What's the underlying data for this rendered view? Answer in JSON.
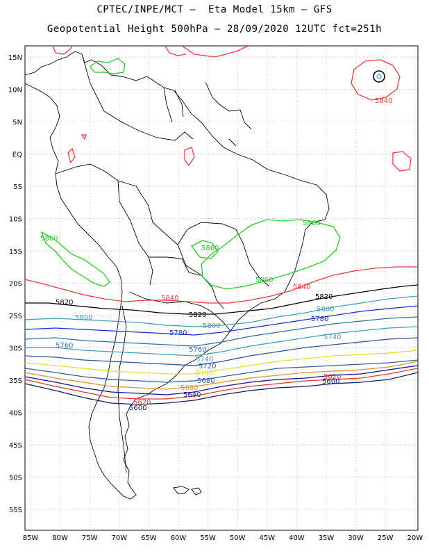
{
  "header": {
    "line1": "CPTEC/INPE/MCT –  Eta Model 15km – GFS",
    "line2": "Geopotential Height 500hPa – 28/09/2020 12UTC fct=251h"
  },
  "axes": {
    "lon_ticks": [
      "85W",
      "80W",
      "75W",
      "70W",
      "65W",
      "60W",
      "55W",
      "50W",
      "45W",
      "40W",
      "35W",
      "30W",
      "25W",
      "20W"
    ],
    "lat_ticks": [
      "15N",
      "10N",
      "5N",
      "EQ",
      "5S",
      "10S",
      "15S",
      "20S",
      "25S",
      "30S",
      "35S",
      "40S",
      "45S",
      "50S",
      "55S"
    ],
    "grid": "dotted"
  },
  "colors": {
    "c5500": "#0a1f6e",
    "c5520": "#e03a2a",
    "c5540": "#1010a0",
    "c5560": "#e09030",
    "c5580": "#e0e020",
    "c5600": "#2288cc",
    "c5620": "#2b6ea8",
    "c5640": "#1030c0",
    "c5660": "#30a0c0",
    "c5680": "#3060a0",
    "c5700": "#2040b0",
    "c5720": "#3050a0",
    "c5740": "#3a9ec0",
    "c5760": "#2b6ea8",
    "c5780": "#1030d0",
    "c5800": "#3a9ec0",
    "c5820": "#000000",
    "c5840": "#e83b3b",
    "c5860": "#22cc22",
    "coast": "#000000"
  },
  "contour_labels": [
    {
      "id": "l5860a",
      "text": "5860",
      "color": "#22cc22"
    },
    {
      "id": "l5860b",
      "text": "5860",
      "color": "#22cc22"
    },
    {
      "id": "l5860c",
      "text": "5860",
      "color": "#22cc22"
    },
    {
      "id": "l5860d",
      "text": "5860",
      "color": "#22cc22"
    },
    {
      "id": "l5840a",
      "text": "5840",
      "color": "#e83b3b"
    },
    {
      "id": "l5840b",
      "text": "5840",
      "color": "#e83b3b"
    },
    {
      "id": "l5840c",
      "text": "5840",
      "color": "#e83b3b"
    },
    {
      "id": "l5820a",
      "text": "5820",
      "color": "#000000"
    },
    {
      "id": "l5820b",
      "text": "5820",
      "color": "#000000"
    },
    {
      "id": "l5820c",
      "text": "5820",
      "color": "#000000"
    },
    {
      "id": "l5800a",
      "text": "5800",
      "color": "#3a9ec0"
    },
    {
      "id": "l5800b",
      "text": "5800",
      "color": "#3a9ec0"
    },
    {
      "id": "l5800c",
      "text": "5800",
      "color": "#3a9ec0"
    },
    {
      "id": "l5780a",
      "text": "5780",
      "color": "#1030d0"
    },
    {
      "id": "l5780b",
      "text": "5780",
      "color": "#1030d0"
    },
    {
      "id": "l5760a",
      "text": "5760",
      "color": "#2b6ea8"
    },
    {
      "id": "l5760b",
      "text": "5760",
      "color": "#2b6ea8"
    },
    {
      "id": "l5740a",
      "text": "5740",
      "color": "#3a9ec0"
    },
    {
      "id": "l5740b",
      "text": "5740",
      "color": "#3a9ec0"
    },
    {
      "id": "l5720a",
      "text": "5720",
      "color": "#3050a0"
    },
    {
      "id": "l5700a",
      "text": "5700",
      "color": "#e0e020"
    },
    {
      "id": "l5680a",
      "text": "5680",
      "color": "#3060a0"
    },
    {
      "id": "l5660a",
      "text": "5660",
      "color": "#e09030"
    },
    {
      "id": "l5640a",
      "text": "5640",
      "color": "#1010a0"
    },
    {
      "id": "l5620a",
      "text": "5620",
      "color": "#e03a2a"
    },
    {
      "id": "l5620b",
      "text": "5620",
      "color": "#e03a2a"
    },
    {
      "id": "l5600a",
      "text": "5600",
      "color": "#0a1f6e"
    },
    {
      "id": "l5600b",
      "text": "5600",
      "color": "#0a1f6e"
    }
  ]
}
